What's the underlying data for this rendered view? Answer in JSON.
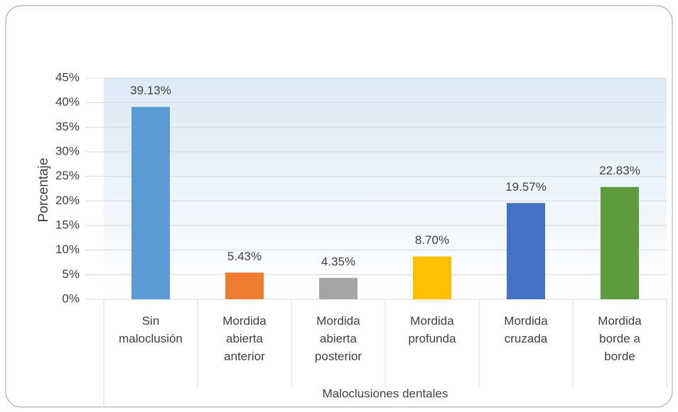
{
  "chart_data": {
    "type": "bar",
    "categories": [
      "Sin maloclusión",
      "Mordida abierta anterior",
      "Mordida abierta posterior",
      "Mordida profunda",
      "Mordida cruzada",
      "Mordida borde a borde"
    ],
    "values": [
      39.13,
      5.43,
      4.35,
      8.7,
      19.57,
      22.83
    ],
    "value_labels": [
      "39.13%",
      "5.43%",
      "4.35%",
      "8.70%",
      "19.57%",
      "22.83%"
    ],
    "colors": [
      "#5b9bd5",
      "#ed7d31",
      "#a5a5a5",
      "#ffc000",
      "#4472c4",
      "#5e9b3c"
    ],
    "y_label": "Porcentaje",
    "x_label": "Maloclusiones dentales",
    "ylim": [
      0,
      45
    ],
    "yticks": [
      {
        "value": 0,
        "label": "0%"
      },
      {
        "value": 5,
        "label": "5%"
      },
      {
        "value": 10,
        "label": "10%"
      },
      {
        "value": 15,
        "label": "15%"
      },
      {
        "value": 20,
        "label": "20%"
      },
      {
        "value": 25,
        "label": "25%"
      },
      {
        "value": 30,
        "label": "30%"
      },
      {
        "value": 35,
        "label": "35%"
      },
      {
        "value": 40,
        "label": "40%"
      },
      {
        "value": 45,
        "label": "45%"
      }
    ],
    "grid": true
  }
}
